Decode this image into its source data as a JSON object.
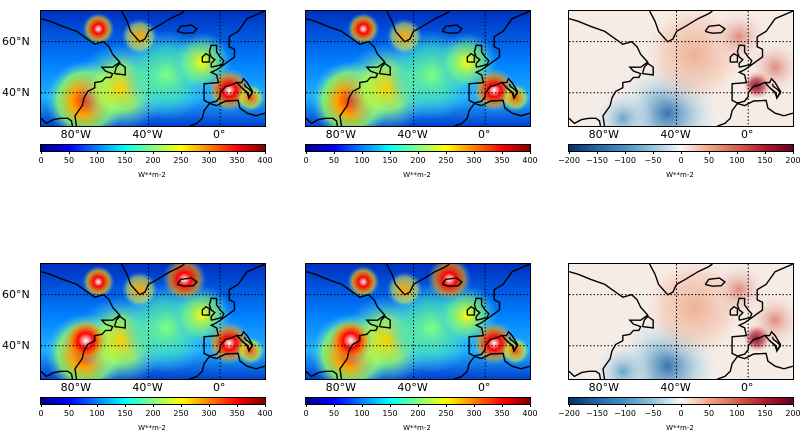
{
  "lat_labels": [
    "60°N",
    "40°N"
  ],
  "lon_labels": [
    "80°W",
    "40°W",
    "0°"
  ],
  "panels": [
    {
      "row": 0,
      "col": 0,
      "field": "mean",
      "colormap": "jet",
      "range": [
        0,
        400
      ]
    },
    {
      "row": 0,
      "col": 1,
      "field": "mean",
      "colormap": "jet",
      "range": [
        0,
        400
      ]
    },
    {
      "row": 0,
      "col": 2,
      "field": "difference",
      "colormap": "RdBu_r",
      "range": [
        -200,
        200
      ]
    },
    {
      "row": 1,
      "col": 0,
      "field": "mean",
      "colormap": "jet",
      "range": [
        0,
        400
      ]
    },
    {
      "row": 1,
      "col": 1,
      "field": "mean",
      "colormap": "jet",
      "range": [
        0,
        400
      ]
    },
    {
      "row": 1,
      "col": 2,
      "field": "difference",
      "colormap": "RdBu_r",
      "range": [
        -200,
        200
      ]
    }
  ],
  "colorbars": {
    "seq": {
      "ticks": [
        "0",
        "50",
        "100",
        "150",
        "200",
        "250",
        "300",
        "350",
        "400"
      ],
      "unit": "W**m-2",
      "colors": [
        "#00008f",
        "#0000ff",
        "#0080ff",
        "#00ffff",
        "#80ff80",
        "#ffff00",
        "#ff8000",
        "#ff0000",
        "#800000"
      ]
    },
    "div": {
      "ticks": [
        "−200",
        "−150",
        "−100",
        "−50",
        "0",
        "50",
        "100",
        "150",
        "200"
      ],
      "unit": "W**m-2",
      "colors": [
        "#053061",
        "#2166ac",
        "#4393c3",
        "#92c5de",
        "#f7f7f7",
        "#f4a582",
        "#d6604d",
        "#b2182b",
        "#67001f"
      ]
    }
  },
  "colors": {
    "coast": "#000000",
    "grid": "#000000",
    "frame": "#000000"
  }
}
